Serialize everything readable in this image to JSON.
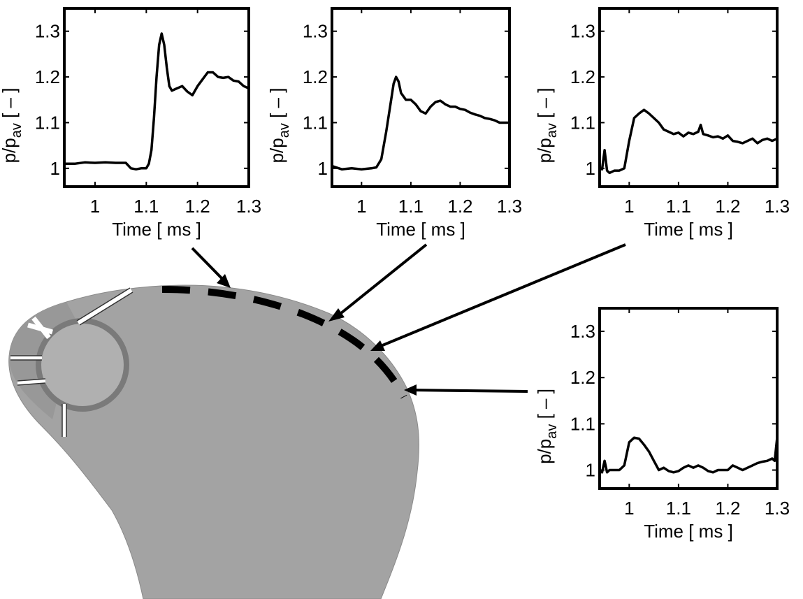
{
  "chart_data": [
    {
      "type": "line",
      "xlabel": "Time  [ ms ]",
      "ylabel": "p/p",
      "ylabel_subscript": "av",
      "ylabel_unit": "[ – ]",
      "xlim": [
        0.94,
        1.3
      ],
      "ylim": [
        0.96,
        1.35
      ],
      "xticks": [
        "1",
        "1.1",
        "1.2",
        "1.3"
      ],
      "yticks": [
        "1",
        "1.1",
        "1.2",
        "1.3"
      ],
      "series": [
        {
          "x": [
            0.94,
            0.96,
            0.98,
            1.0,
            1.02,
            1.04,
            1.06,
            1.07,
            1.08,
            1.09,
            1.1,
            1.105,
            1.11,
            1.115,
            1.12,
            1.125,
            1.13,
            1.135,
            1.14,
            1.145,
            1.15,
            1.16,
            1.17,
            1.18,
            1.19,
            1.2,
            1.21,
            1.22,
            1.23,
            1.24,
            1.25,
            1.26,
            1.27,
            1.28,
            1.29,
            1.3
          ],
          "y": [
            1.01,
            1.01,
            1.013,
            1.012,
            1.013,
            1.012,
            1.012,
            1.0,
            0.998,
            1.0,
            1.0,
            1.01,
            1.04,
            1.11,
            1.2,
            1.27,
            1.295,
            1.27,
            1.22,
            1.18,
            1.17,
            1.175,
            1.18,
            1.168,
            1.16,
            1.18,
            1.195,
            1.21,
            1.21,
            1.2,
            1.198,
            1.2,
            1.192,
            1.19,
            1.18,
            1.175
          ]
        }
      ]
    },
    {
      "type": "line",
      "xlabel": "Time  [ ms ]",
      "ylabel": "p/p",
      "ylabel_subscript": "av",
      "ylabel_unit": "[ – ]",
      "xlim": [
        0.94,
        1.3
      ],
      "ylim": [
        0.96,
        1.35
      ],
      "xticks": [
        "1",
        "1.1",
        "1.2",
        "1.3"
      ],
      "yticks": [
        "1",
        "1.1",
        "1.2",
        "1.3"
      ],
      "series": [
        {
          "x": [
            0.94,
            0.96,
            0.98,
            1.0,
            1.02,
            1.03,
            1.04,
            1.05,
            1.06,
            1.065,
            1.07,
            1.075,
            1.08,
            1.09,
            1.1,
            1.11,
            1.12,
            1.13,
            1.14,
            1.15,
            1.16,
            1.17,
            1.18,
            1.19,
            1.2,
            1.21,
            1.22,
            1.23,
            1.24,
            1.25,
            1.26,
            1.27,
            1.28,
            1.29,
            1.3
          ],
          "y": [
            1.005,
            0.998,
            1.0,
            0.998,
            1.0,
            1.002,
            1.02,
            1.08,
            1.15,
            1.185,
            1.2,
            1.19,
            1.165,
            1.15,
            1.15,
            1.14,
            1.125,
            1.12,
            1.135,
            1.145,
            1.148,
            1.14,
            1.135,
            1.135,
            1.13,
            1.128,
            1.122,
            1.118,
            1.115,
            1.11,
            1.108,
            1.105,
            1.1,
            1.1,
            1.1
          ]
        }
      ]
    },
    {
      "type": "line",
      "xlabel": "Time  [ ms ]",
      "ylabel": "p/p",
      "ylabel_subscript": "av",
      "ylabel_unit": "[ – ]",
      "xlim": [
        0.94,
        1.3
      ],
      "ylim": [
        0.96,
        1.35
      ],
      "xticks": [
        "1",
        "1.1",
        "1.2",
        "1.3"
      ],
      "yticks": [
        "1",
        "1.1",
        "1.2",
        "1.3"
      ],
      "series": [
        {
          "x": [
            0.94,
            0.945,
            0.95,
            0.955,
            0.96,
            0.97,
            0.98,
            0.99,
            1.0,
            1.01,
            1.02,
            1.03,
            1.04,
            1.05,
            1.06,
            1.07,
            1.08,
            1.09,
            1.1,
            1.11,
            1.12,
            1.13,
            1.14,
            1.145,
            1.15,
            1.16,
            1.17,
            1.18,
            1.19,
            1.2,
            1.21,
            1.22,
            1.23,
            1.24,
            1.25,
            1.26,
            1.27,
            1.28,
            1.29,
            1.3
          ],
          "y": [
            1.0,
            0.998,
            1.04,
            0.995,
            0.99,
            0.995,
            0.995,
            1.0,
            1.06,
            1.11,
            1.12,
            1.128,
            1.12,
            1.11,
            1.1,
            1.085,
            1.08,
            1.075,
            1.078,
            1.07,
            1.078,
            1.075,
            1.08,
            1.095,
            1.075,
            1.072,
            1.068,
            1.07,
            1.065,
            1.072,
            1.06,
            1.058,
            1.055,
            1.06,
            1.065,
            1.055,
            1.062,
            1.065,
            1.06,
            1.065
          ]
        }
      ]
    },
    {
      "type": "line",
      "xlabel": "Time  [ ms ]",
      "ylabel": "p/p",
      "ylabel_subscript": "av",
      "ylabel_unit": "[ – ]",
      "xlim": [
        0.94,
        1.3
      ],
      "ylim": [
        0.96,
        1.35
      ],
      "xticks": [
        "1",
        "1.1",
        "1.2",
        "1.3"
      ],
      "yticks": [
        "1",
        "1.1",
        "1.2",
        "1.3"
      ],
      "series": [
        {
          "x": [
            0.94,
            0.945,
            0.95,
            0.955,
            0.96,
            0.97,
            0.98,
            0.99,
            1.0,
            1.01,
            1.02,
            1.03,
            1.04,
            1.05,
            1.06,
            1.07,
            1.08,
            1.09,
            1.1,
            1.11,
            1.12,
            1.13,
            1.14,
            1.15,
            1.16,
            1.17,
            1.18,
            1.19,
            1.2,
            1.21,
            1.22,
            1.23,
            1.24,
            1.25,
            1.26,
            1.27,
            1.28,
            1.29,
            1.295,
            1.3
          ],
          "y": [
            0.998,
            0.995,
            1.02,
            0.995,
            1.0,
            1.0,
            1.0,
            1.01,
            1.06,
            1.07,
            1.068,
            1.055,
            1.04,
            1.02,
            1.0,
            1.005,
            0.998,
            0.995,
            0.998,
            1.005,
            1.01,
            1.005,
            1.01,
            1.005,
            0.998,
            0.995,
            1.0,
            1.0,
            1.0,
            1.01,
            1.005,
            1.0,
            1.005,
            1.01,
            1.015,
            1.018,
            1.02,
            1.025,
            1.02,
            1.07
          ]
        }
      ]
    }
  ]
}
